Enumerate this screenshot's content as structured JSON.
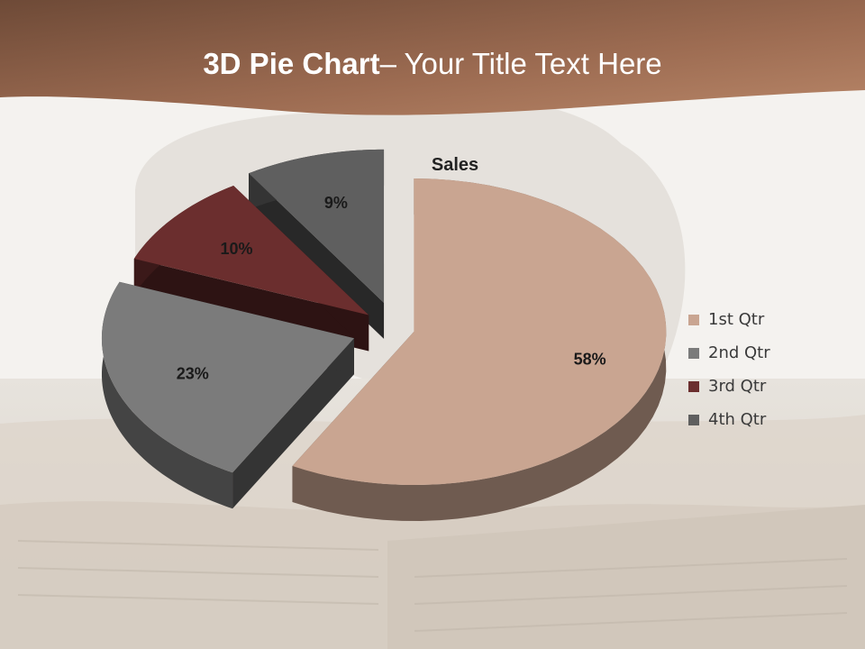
{
  "slide": {
    "title_bold": "3D Pie Chart",
    "title_rest": "– Your Title Text Here"
  },
  "colors": {
    "header_band": "#a47258",
    "slice_1": "#c9a591",
    "slice_2": "#7b7b7b",
    "slice_3": "#6b2e2e",
    "slice_4": "#5f5f5f"
  },
  "chart_data": {
    "type": "pie",
    "style": "3d-exploded",
    "title": "Sales",
    "categories": [
      "1st Qtr",
      "2nd Qtr",
      "3rd Qtr",
      "4th Qtr"
    ],
    "values": [
      58,
      23,
      10,
      9
    ],
    "labels": [
      "58%",
      "23%",
      "10%",
      "9%"
    ],
    "legend_position": "right"
  }
}
